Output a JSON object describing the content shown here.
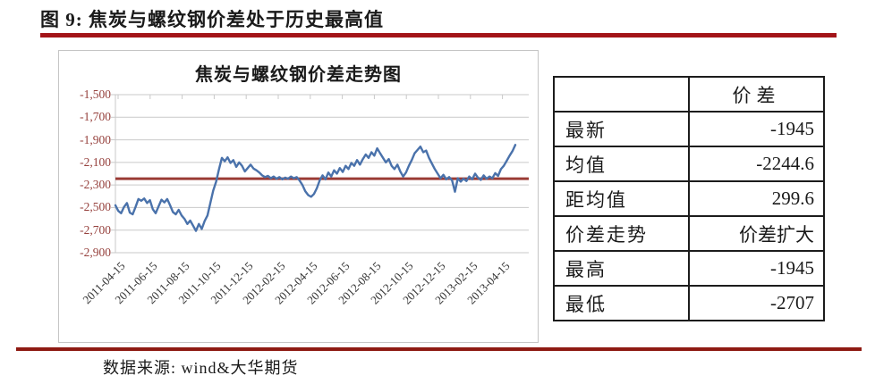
{
  "figure": {
    "title": "图 9: 焦炭与螺纹钢价差处于历史最高值",
    "source": "数据来源: wind&大华期货"
  },
  "colors": {
    "title_rule": "#a31418",
    "bottom_rule": "#8e1a12",
    "grid": "#c9c9c9",
    "axis_line": "#c9c9c9",
    "y_tick_text": "#96413d",
    "x_tick_text": "#333333",
    "mean_line": "#9a3b35",
    "series_line": "#4a72ab",
    "table_border": "#1c1c1c"
  },
  "chart_data": {
    "type": "line",
    "title": "焦炭与螺纹钢价差走势图",
    "xlabel": "",
    "ylabel": "",
    "x_range": [
      "2011-04-15",
      "2013-04-26"
    ],
    "x_tick_labels": [
      "2011-04-15",
      "2011-06-15",
      "2011-08-15",
      "2011-10-15",
      "2011-12-15",
      "2012-02-15",
      "2012-04-15",
      "2012-06-15",
      "2012-08-15",
      "2012-10-15",
      "2012-12-15",
      "2013-02-15",
      "2013-04-15"
    ],
    "ylim": [
      -2900,
      -1500
    ],
    "y_ticks": [
      -1500,
      -1700,
      -1900,
      -2100,
      -2300,
      -2500,
      -2700,
      -2900
    ],
    "y_tick_labels": [
      "-1,500",
      "-1,700",
      "-1,900",
      "-2,100",
      "-2,300",
      "-2,500",
      "-2,700",
      "-2,900"
    ],
    "grid": true,
    "legend": "none",
    "mean_line_value": -2244.6,
    "series": [
      {
        "name": "焦炭与螺纹钢价差",
        "values": [
          -2480,
          -2530,
          -2550,
          -2495,
          -2460,
          -2545,
          -2560,
          -2495,
          -2425,
          -2440,
          -2420,
          -2460,
          -2435,
          -2515,
          -2550,
          -2490,
          -2430,
          -2455,
          -2425,
          -2480,
          -2540,
          -2560,
          -2520,
          -2570,
          -2600,
          -2645,
          -2615,
          -2660,
          -2707,
          -2645,
          -2690,
          -2620,
          -2570,
          -2460,
          -2350,
          -2270,
          -2160,
          -2060,
          -2090,
          -2055,
          -2105,
          -2080,
          -2140,
          -2100,
          -2130,
          -2180,
          -2150,
          -2120,
          -2155,
          -2170,
          -2190,
          -2215,
          -2230,
          -2220,
          -2240,
          -2225,
          -2245,
          -2230,
          -2250,
          -2235,
          -2245,
          -2225,
          -2240,
          -2230,
          -2260,
          -2300,
          -2355,
          -2390,
          -2405,
          -2380,
          -2330,
          -2260,
          -2215,
          -2250,
          -2190,
          -2225,
          -2170,
          -2200,
          -2150,
          -2185,
          -2130,
          -2160,
          -2105,
          -2130,
          -2080,
          -2120,
          -2070,
          -2030,
          -2060,
          -2010,
          -2040,
          -1975,
          -2020,
          -2060,
          -2100,
          -2070,
          -2130,
          -2160,
          -2120,
          -2180,
          -2225,
          -2190,
          -2130,
          -2080,
          -2020,
          -1990,
          -1960,
          -2010,
          -1995,
          -2060,
          -2110,
          -2160,
          -2200,
          -2240,
          -2210,
          -2250,
          -2230,
          -2260,
          -2360,
          -2240,
          -2270,
          -2245,
          -2265,
          -2225,
          -2250,
          -2200,
          -2235,
          -2255,
          -2215,
          -2245,
          -2225,
          -2240,
          -2195,
          -2220,
          -2160,
          -2130,
          -2085,
          -2040,
          -2000,
          -1945
        ]
      }
    ]
  },
  "table": {
    "header": [
      "",
      "价差"
    ],
    "rows": [
      {
        "label": "最新",
        "value": "-1945"
      },
      {
        "label": "均值",
        "value": "-2244.6"
      },
      {
        "label": "距均值",
        "value": "299.6"
      },
      {
        "label": "价差走势",
        "value": "价差扩大"
      },
      {
        "label": "最高",
        "value": "-1945"
      },
      {
        "label": "最低",
        "value": "-2707"
      }
    ]
  }
}
